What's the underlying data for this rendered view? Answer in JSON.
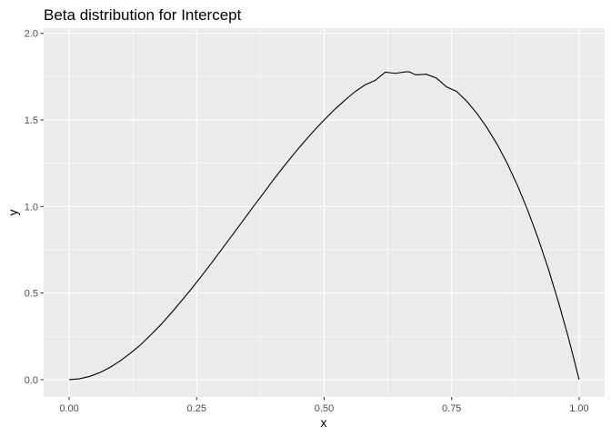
{
  "chart_data": {
    "type": "line",
    "title": "Beta distribution for Intercept",
    "xlabel": "x",
    "ylabel": "y",
    "xlim": [
      -0.05,
      1.05
    ],
    "ylim": [
      -0.1,
      2.03
    ],
    "x_ticks": [
      0,
      0.25,
      0.5,
      0.75,
      1
    ],
    "x_tick_labels": [
      "0.00",
      "0.25",
      "0.50",
      "0.75",
      "1.00"
    ],
    "y_ticks": [
      0,
      0.5,
      1,
      1.5,
      2
    ],
    "y_tick_labels": [
      "0.0",
      "0.5",
      "1.0",
      "1.5",
      "2.0"
    ],
    "grid": true,
    "colors": {
      "panel_background": "#ebebeb",
      "grid_line": "#ffffff",
      "line": "#000000"
    },
    "series": [
      {
        "x": [
          0,
          0.02,
          0.04,
          0.06,
          0.08,
          0.1,
          0.12,
          0.14,
          0.16,
          0.18,
          0.2,
          0.22,
          0.24,
          0.26,
          0.28,
          0.3,
          0.32,
          0.34,
          0.36,
          0.38,
          0.4,
          0.42,
          0.44,
          0.46,
          0.48,
          0.5,
          0.52,
          0.54,
          0.56,
          0.58,
          0.6,
          0.62,
          0.64,
          0.66,
          0.6667,
          0.68,
          0.7,
          0.72,
          0.74,
          0.76,
          0.78,
          0.8,
          0.82,
          0.84,
          0.86,
          0.88,
          0.9,
          0.92,
          0.94,
          0.96,
          0.98,
          1.0
        ],
        "y": [
          0,
          0.0047,
          0.0184,
          0.0406,
          0.0706,
          0.108,
          0.152,
          0.201,
          0.258,
          0.318,
          0.384,
          0.454,
          0.525,
          0.6,
          0.677,
          0.756,
          0.835,
          0.914,
          0.995,
          1.072,
          1.152,
          1.228,
          1.301,
          1.371,
          1.437,
          1.5,
          1.559,
          1.612,
          1.662,
          1.702,
          1.728,
          1.776,
          1.769,
          1.778,
          1.778,
          1.76,
          1.764,
          1.742,
          1.691,
          1.664,
          1.607,
          1.536,
          1.452,
          1.355,
          1.243,
          1.115,
          0.972,
          0.812,
          0.636,
          0.442,
          0.231,
          0
        ]
      }
    ]
  }
}
